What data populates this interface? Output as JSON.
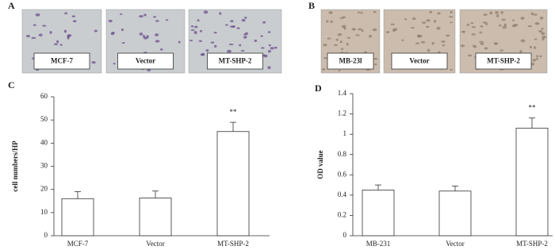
{
  "image_panels": [
    {
      "label": "A",
      "captions": [
        "MCF-7",
        "Vector",
        "MT-SHP-2"
      ]
    },
    {
      "label": "B",
      "captions": [
        "MB-23l",
        "Vector",
        "MT-SHP-2"
      ]
    }
  ],
  "chart_data": [
    {
      "type": "bar",
      "panel_label": "C",
      "ylabel": "cell numbers/HP",
      "categories": [
        "MCF-7",
        "Vector",
        "MT-SHP-2"
      ],
      "values": [
        16,
        16.3,
        45
      ],
      "errors": [
        3,
        3,
        4
      ],
      "annotations": [
        null,
        null,
        "**"
      ],
      "color": "#ffffff",
      "ylim": [
        0,
        60
      ],
      "yticks": [
        0,
        10,
        20,
        30,
        40,
        50,
        60
      ]
    },
    {
      "type": "bar",
      "panel_label": "D",
      "ylabel": "OD value",
      "categories": [
        "MB-231",
        "Vector",
        "MT-SHP-2"
      ],
      "values": [
        0.45,
        0.44,
        1.06
      ],
      "errors": [
        0.05,
        0.05,
        0.1
      ],
      "annotations": [
        null,
        null,
        "**"
      ],
      "color": "#ffffff",
      "ylim": [
        0,
        1.4
      ],
      "yticks": [
        0,
        0.2,
        0.4,
        0.6,
        0.8,
        1,
        1.2,
        1.4
      ]
    }
  ]
}
